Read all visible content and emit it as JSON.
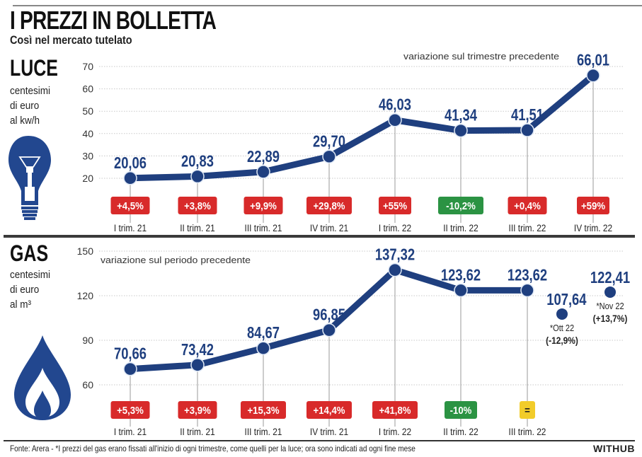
{
  "header": {
    "title": "I PREZZI IN BOLLETTA",
    "subtitle": "Così nel mercato tutelato"
  },
  "colors": {
    "line": "#1f3f7f",
    "increase": "#d82a2a",
    "decrease": "#2b9343",
    "unchanged": "#f2cc2a",
    "text": "#222222",
    "value_text": "#1f3f7f"
  },
  "luce": {
    "title": "LUCE",
    "unit_lines": [
      "centesimi",
      "di euro",
      "al kw/h"
    ],
    "icon": "lightbulb-icon"
  },
  "gas": {
    "title": "GAS",
    "unit_lines": [
      "centesimi",
      "di euro",
      "al m³"
    ],
    "icon": "gas-flame-icon"
  },
  "footer": {
    "source": "Fonte: Arera - *I prezzi del gas erano fissati all'inizio di ogni trimestre, come quelli per la luce; ora sono indicati ad ogni fine mese",
    "brand": "WITHUB"
  },
  "chart_data": [
    {
      "type": "line",
      "title": "LUCE",
      "ylabel": "centesimi di euro al kw/h",
      "annotation": "variazione sul trimestre precedente",
      "ylim": [
        20,
        70
      ],
      "yticks": [
        70,
        60,
        50,
        40,
        30,
        20
      ],
      "grid": true,
      "categories": [
        "I trim. 21",
        "II trim. 21",
        "III trim. 21",
        "IV trim. 21",
        "I trim. 22",
        "II trim. 22",
        "III trim. 22",
        "IV trim. 22"
      ],
      "values": [
        20.06,
        20.83,
        22.89,
        29.7,
        46.03,
        41.34,
        41.51,
        66.01
      ],
      "value_labels": [
        "20,06",
        "20,83",
        "22,89",
        "29,70",
        "46,03",
        "41,34",
        "41,51",
        "66,01"
      ],
      "changes": [
        "+4,5%",
        "+3,8%",
        "+9,9%",
        "+29,8%",
        "+55%",
        "-10,2%",
        "+0,4%",
        "+59%"
      ],
      "change_types": [
        "up",
        "up",
        "up",
        "up",
        "up",
        "down",
        "up",
        "up"
      ]
    },
    {
      "type": "line",
      "title": "GAS",
      "ylabel": "centesimi di euro al m³",
      "annotation": "variazione sul periodo precedente",
      "ylim": [
        60,
        150
      ],
      "yticks": [
        150,
        120,
        90,
        60
      ],
      "grid": true,
      "categories": [
        "I trim. 21",
        "II trim. 21",
        "III trim. 21",
        "IV trim. 21",
        "I trim. 22",
        "II trim. 22",
        "III trim. 22"
      ],
      "values": [
        70.66,
        73.42,
        84.67,
        96.85,
        137.32,
        123.62,
        123.62
      ],
      "value_labels": [
        "70,66",
        "73,42",
        "84,67",
        "96,85",
        "137,32",
        "123,62",
        "123,62"
      ],
      "changes": [
        "+5,3%",
        "+3,9%",
        "+15,3%",
        "+14,4%",
        "+41,8%",
        "-10%",
        "="
      ],
      "change_types": [
        "up",
        "up",
        "up",
        "up",
        "up",
        "down",
        "same"
      ],
      "monthly": [
        {
          "label": "*Ott 22",
          "value": 107.64,
          "value_label": "107,64",
          "change": "(-12,9%)"
        },
        {
          "label": "*Nov 22",
          "value": 122.41,
          "value_label": "122,41",
          "change": "(+13,7%)"
        }
      ]
    }
  ]
}
